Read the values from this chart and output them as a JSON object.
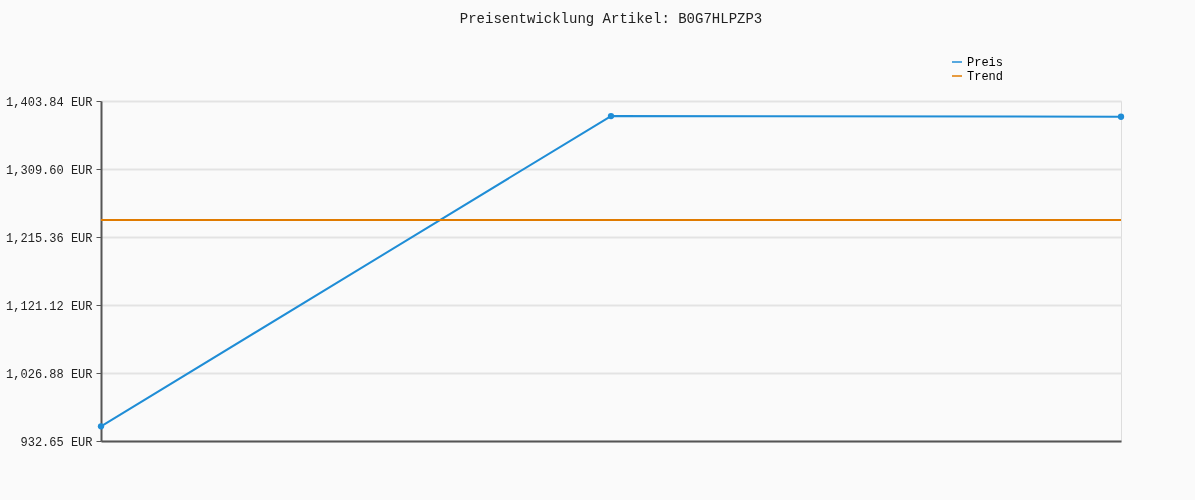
{
  "chart_data": {
    "type": "line",
    "title": "Preisentwicklung Artikel: B0G7HLPZP3",
    "categories": [
      null,
      null,
      null
    ],
    "series": [
      {
        "name": "Preis",
        "color": "#1f8dd6",
        "values": [
          953,
          1383,
          1382
        ],
        "marker": "circle"
      },
      {
        "name": "Trend",
        "color": "#e07b00",
        "values": [
          1239,
          1239,
          1239
        ],
        "marker": "none"
      }
    ],
    "ylim": [
      932.65,
      1403.84
    ],
    "yticks": [
      {
        "value": 932.65,
        "label": "932.65 EUR"
      },
      {
        "value": 1026.88,
        "label": "1,026.88 EUR"
      },
      {
        "value": 1121.12,
        "label": "1,121.12 EUR"
      },
      {
        "value": 1215.36,
        "label": "1,215.36 EUR"
      },
      {
        "value": 1309.6,
        "label": "1,309.60 EUR"
      },
      {
        "value": 1403.84,
        "label": "1,403.84 EUR"
      }
    ],
    "grid": "y",
    "legend": "top right",
    "line_style": "solid"
  }
}
